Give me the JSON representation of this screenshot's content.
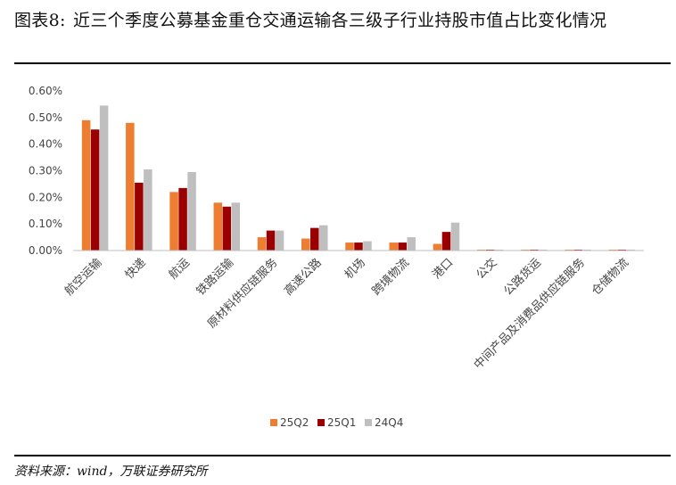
{
  "figure": {
    "label": "图表8:",
    "title": "近三个季度公募基金重仓交通运输各三级子行业持股市值占比变化情况",
    "source": "资料来源：wind，万联证券研究所"
  },
  "chart_data": {
    "type": "bar",
    "categories": [
      "航空运输",
      "快递",
      "航运",
      "铁路运输",
      "原材料供应链服务",
      "高速公路",
      "机场",
      "跨境物流",
      "港口",
      "公交",
      "公路货运",
      "中间产品及消费品供应链服务",
      "仓储物流"
    ],
    "series": [
      {
        "name": "25Q2",
        "color": "#ED7D31",
        "values": [
          0.49,
          0.48,
          0.22,
          0.18,
          0.05,
          0.045,
          0.03,
          0.03,
          0.025,
          0.0,
          0.0,
          0.0,
          0.0
        ]
      },
      {
        "name": "25Q1",
        "color": "#9B0000",
        "values": [
          0.455,
          0.255,
          0.235,
          0.165,
          0.075,
          0.085,
          0.03,
          0.03,
          0.07,
          0.0,
          0.0,
          0.003,
          0.0
        ]
      },
      {
        "name": "24Q4",
        "color": "#BFBFBF",
        "values": [
          0.545,
          0.305,
          0.295,
          0.18,
          0.075,
          0.095,
          0.035,
          0.05,
          0.105,
          0.0,
          0.0,
          0.0,
          0.0
        ]
      }
    ],
    "yticks": [
      "0.00%",
      "0.10%",
      "0.20%",
      "0.30%",
      "0.40%",
      "0.50%",
      "0.60%"
    ],
    "ylim": [
      0,
      0.6
    ],
    "grid": false,
    "legend": "bottom"
  }
}
